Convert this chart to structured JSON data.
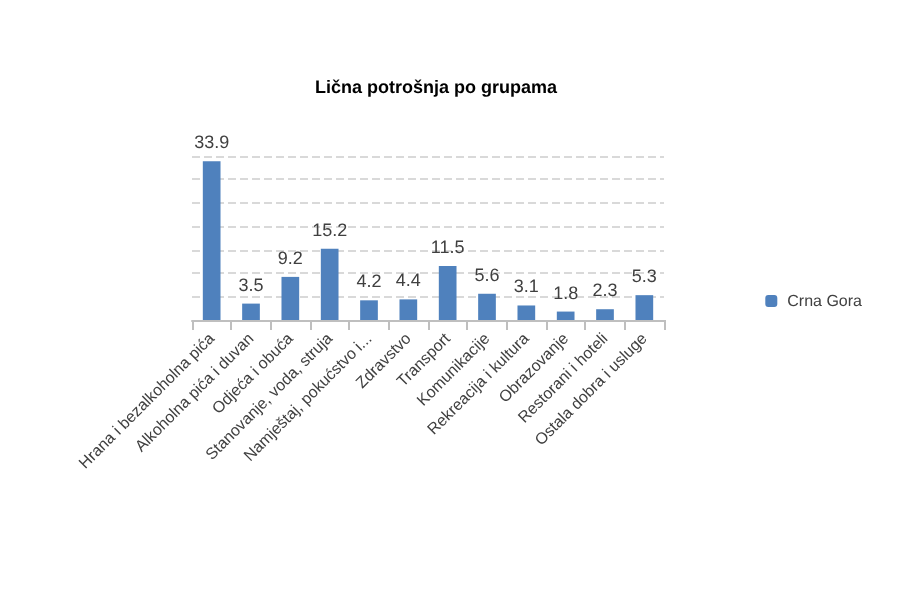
{
  "chart_data": {
    "type": "bar",
    "title": "Lična potrošnja po grupama",
    "categories": [
      "Hrana i bezalkoholna pića",
      "Alkoholna pića i duvan",
      "Odjeća i obuća",
      "Stanovanje, voda, struja",
      "Namještaj, pokućstvo i...",
      "Zdravstvo",
      "Transport",
      "Komunikacije",
      "Rekreacija i kultura",
      "Obrazovanje",
      "Restorani i hoteli",
      "Ostala dobra i usluge"
    ],
    "series": [
      {
        "name": "Crna Gora",
        "color": "#4f81bd",
        "values": [
          33.9,
          3.5,
          9.2,
          15.2,
          4.2,
          4.4,
          11.5,
          5.6,
          3.1,
          1.8,
          2.3,
          5.3
        ]
      }
    ],
    "data_labels": true,
    "grid": "y",
    "legend": "right",
    "tick_labels": "x"
  }
}
